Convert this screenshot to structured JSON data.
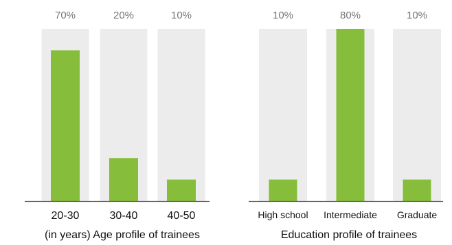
{
  "colors": {
    "bar": "#86bd3a",
    "track": "#ececec",
    "axis": "#555555",
    "value_text": "#777777",
    "label_text": "#111111"
  },
  "chart_data": [
    {
      "type": "bar",
      "title": "(in years) Age profile of trainees",
      "categories": [
        "20-30",
        "30-40",
        "40-50"
      ],
      "values": [
        70,
        20,
        10
      ],
      "value_labels": [
        "70%",
        "20%",
        "10%"
      ],
      "ylim": [
        0,
        80
      ],
      "grid": false,
      "legend": "none"
    },
    {
      "type": "bar",
      "title": "Education profile of trainees",
      "categories": [
        "High school",
        "Intermediate",
        "Graduate"
      ],
      "values": [
        10,
        80,
        10
      ],
      "value_labels": [
        "10%",
        "80%",
        "10%"
      ],
      "ylim": [
        0,
        80
      ],
      "grid": false,
      "legend": "none"
    }
  ]
}
